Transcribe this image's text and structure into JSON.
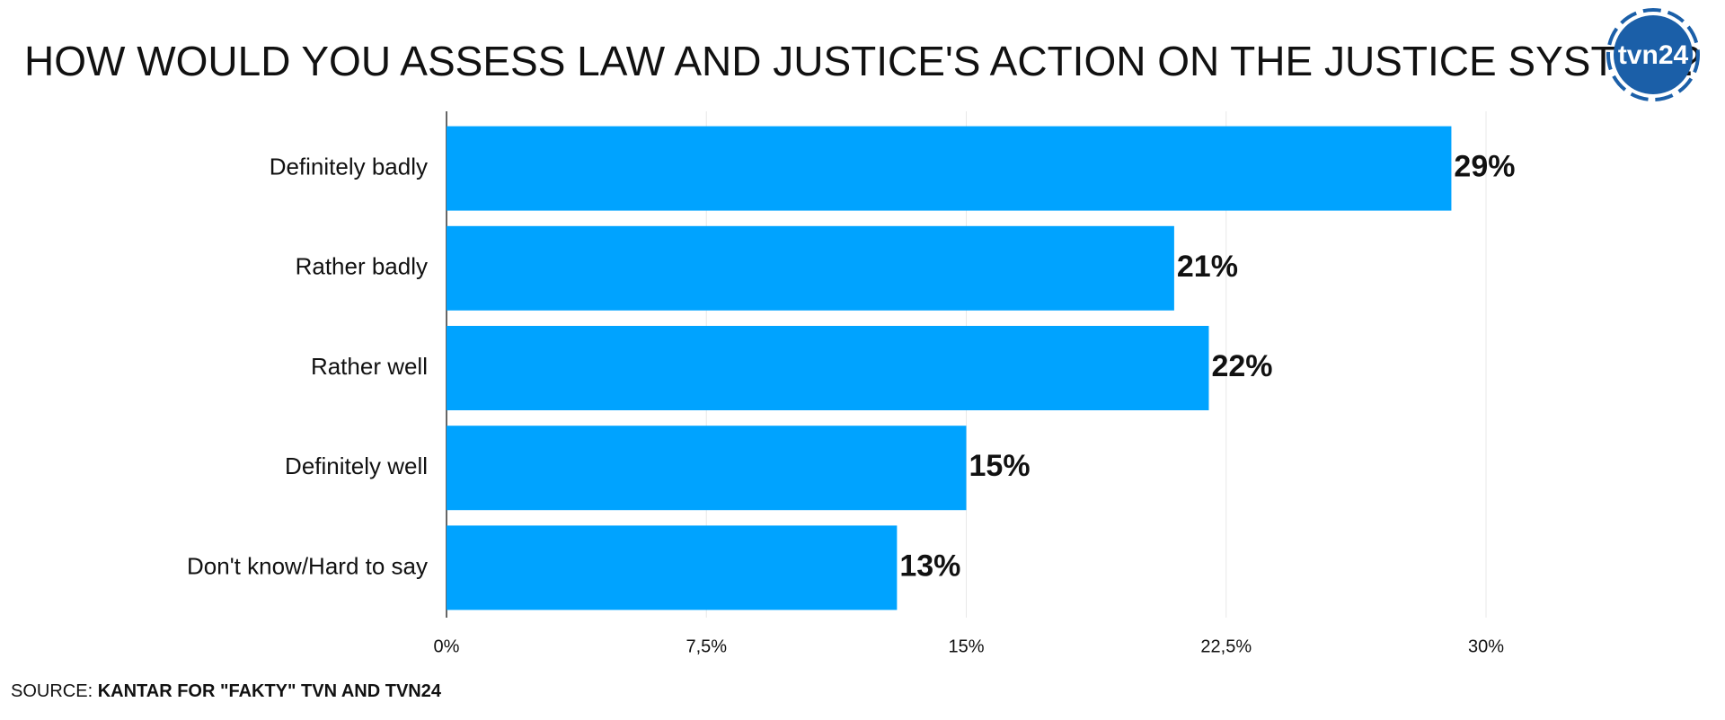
{
  "chart_data": {
    "type": "bar",
    "orientation": "horizontal",
    "title": "HOW WOULD YOU ASSESS LAW AND JUSTICE'S ACTION ON THE JUSTICE SYSTEM?",
    "categories": [
      "Definitely badly",
      "Rather badly",
      "Rather well",
      "Definitely well",
      "Don't know/Hard to say"
    ],
    "values": [
      29,
      21,
      22,
      15,
      13
    ],
    "value_labels": [
      "29%",
      "21%",
      "22%",
      "15%",
      "13%"
    ],
    "color": "#00a3ff",
    "xlim": [
      0,
      30
    ],
    "xticks": [
      {
        "value": 0,
        "label": "0%"
      },
      {
        "value": 7.5,
        "label": "7,5%"
      },
      {
        "value": 15,
        "label": "15%"
      },
      {
        "value": 22.5,
        "label": "22,5%"
      },
      {
        "value": 30,
        "label": "30%"
      }
    ],
    "grid": true,
    "source_prefix": "SOURCE:",
    "source": "KANTAR FOR \"FAKTY\" TVN AND TVN24",
    "logo": "tvn24"
  }
}
